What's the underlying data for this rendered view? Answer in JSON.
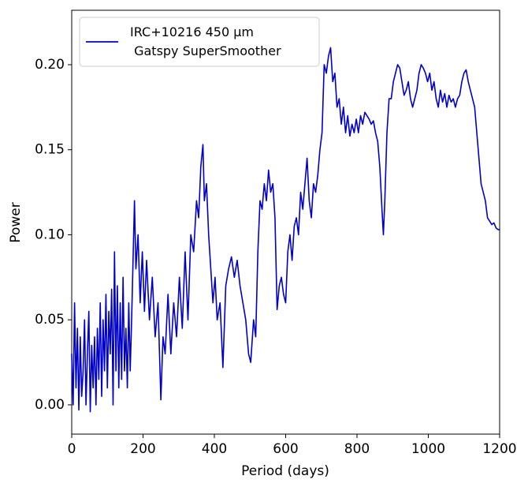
{
  "chart_data": {
    "type": "line",
    "xlabel": "Period (days)",
    "ylabel": "Power",
    "xlim": [
      0,
      1200
    ],
    "ylim": [
      -0.0172,
      0.232
    ],
    "xticks": [
      0,
      200,
      400,
      600,
      800,
      1000,
      1200
    ],
    "yticks": [
      {
        "value": 0,
        "label": "0.00"
      },
      0.05,
      {
        "value": 0.1,
        "label": "0.10"
      },
      0.15,
      {
        "value": 0.2,
        "label": "0.20"
      }
    ],
    "grid": false,
    "legend": "upper left",
    "x": [
      0,
      4,
      8,
      12,
      16,
      20,
      24,
      28,
      32,
      36,
      40,
      44,
      48,
      52,
      56,
      60,
      64,
      68,
      72,
      76,
      80,
      84,
      88,
      92,
      96,
      100,
      104,
      108,
      112,
      116,
      120,
      124,
      128,
      132,
      136,
      140,
      144,
      148,
      152,
      156,
      160,
      164,
      168,
      176,
      180,
      186,
      192,
      198,
      204,
      210,
      218,
      226,
      234,
      242,
      250,
      256,
      262,
      270,
      278,
      286,
      294,
      302,
      310,
      318,
      326,
      334,
      342,
      350,
      356,
      362,
      368,
      372,
      378,
      384,
      390,
      396,
      402,
      408,
      416,
      424,
      432,
      440,
      448,
      456,
      464,
      472,
      480,
      488,
      496,
      502,
      510,
      516,
      522,
      528,
      534,
      540,
      546,
      552,
      558,
      564,
      570,
      576,
      582,
      588,
      594,
      600,
      606,
      612,
      618,
      624,
      630,
      636,
      642,
      648,
      654,
      660,
      666,
      672,
      678,
      684,
      690,
      696,
      702,
      708,
      714,
      720,
      726,
      732,
      738,
      744,
      750,
      756,
      762,
      768,
      774,
      780,
      786,
      792,
      798,
      804,
      810,
      816,
      822,
      828,
      834,
      840,
      846,
      852,
      858,
      864,
      870,
      874,
      878,
      884,
      890,
      896,
      902,
      908,
      914,
      920,
      926,
      932,
      938,
      944,
      950,
      956,
      962,
      968,
      974,
      980,
      986,
      992,
      998,
      1004,
      1010,
      1016,
      1022,
      1028,
      1034,
      1040,
      1046,
      1052,
      1058,
      1064,
      1070,
      1076,
      1082,
      1088,
      1094,
      1100,
      1106,
      1112,
      1118,
      1124,
      1130,
      1136,
      1142,
      1148,
      1154,
      1160,
      1166,
      1172,
      1178,
      1184,
      1190,
      1196,
      1200
    ],
    "series": [
      {
        "name": "IRC+10216 450 μm\n Gatspy SuperSmoother",
        "color": "#0000cc",
        "values": [
          0.03,
          0.0,
          0.06,
          0.01,
          0.045,
          -0.003,
          0.04,
          0.005,
          0.02,
          0.05,
          0.0,
          0.03,
          0.055,
          -0.004,
          0.035,
          0.01,
          0.04,
          0.0,
          0.045,
          0.015,
          0.06,
          0.005,
          0.05,
          0.02,
          0.065,
          0.01,
          0.055,
          0.03,
          0.068,
          0.0,
          0.09,
          0.02,
          0.07,
          0.01,
          0.06,
          0.015,
          0.075,
          0.02,
          0.045,
          0.01,
          0.06,
          0.02,
          0.05,
          0.12,
          0.08,
          0.1,
          0.06,
          0.09,
          0.055,
          0.085,
          0.05,
          0.075,
          0.04,
          0.06,
          0.003,
          0.04,
          0.03,
          0.065,
          0.03,
          0.06,
          0.04,
          0.075,
          0.045,
          0.09,
          0.05,
          0.1,
          0.09,
          0.12,
          0.11,
          0.14,
          0.153,
          0.12,
          0.13,
          0.1,
          0.08,
          0.06,
          0.075,
          0.05,
          0.06,
          0.022,
          0.07,
          0.08,
          0.087,
          0.075,
          0.085,
          0.07,
          0.06,
          0.05,
          0.03,
          0.025,
          0.05,
          0.04,
          0.09,
          0.12,
          0.115,
          0.13,
          0.12,
          0.138,
          0.125,
          0.13,
          0.11,
          0.056,
          0.07,
          0.075,
          0.065,
          0.06,
          0.09,
          0.1,
          0.085,
          0.105,
          0.11,
          0.1,
          0.125,
          0.115,
          0.13,
          0.145,
          0.12,
          0.11,
          0.13,
          0.125,
          0.135,
          0.15,
          0.16,
          0.2,
          0.195,
          0.205,
          0.21,
          0.19,
          0.195,
          0.175,
          0.18,
          0.165,
          0.175,
          0.16,
          0.17,
          0.158,
          0.165,
          0.16,
          0.168,
          0.16,
          0.17,
          0.165,
          0.172,
          0.17,
          0.168,
          0.165,
          0.167,
          0.16,
          0.155,
          0.14,
          0.115,
          0.1,
          0.12,
          0.16,
          0.18,
          0.18,
          0.19,
          0.195,
          0.2,
          0.198,
          0.19,
          0.182,
          0.185,
          0.19,
          0.18,
          0.175,
          0.18,
          0.185,
          0.195,
          0.2,
          0.198,
          0.195,
          0.19,
          0.195,
          0.185,
          0.19,
          0.18,
          0.175,
          0.185,
          0.178,
          0.183,
          0.175,
          0.182,
          0.178,
          0.18,
          0.175,
          0.18,
          0.182,
          0.19,
          0.195,
          0.197,
          0.19,
          0.185,
          0.18,
          0.175,
          0.16,
          0.145,
          0.13,
          0.125,
          0.12,
          0.11,
          0.108,
          0.106,
          0.107,
          0.104,
          0.103,
          0.103
        ]
      }
    ]
  }
}
